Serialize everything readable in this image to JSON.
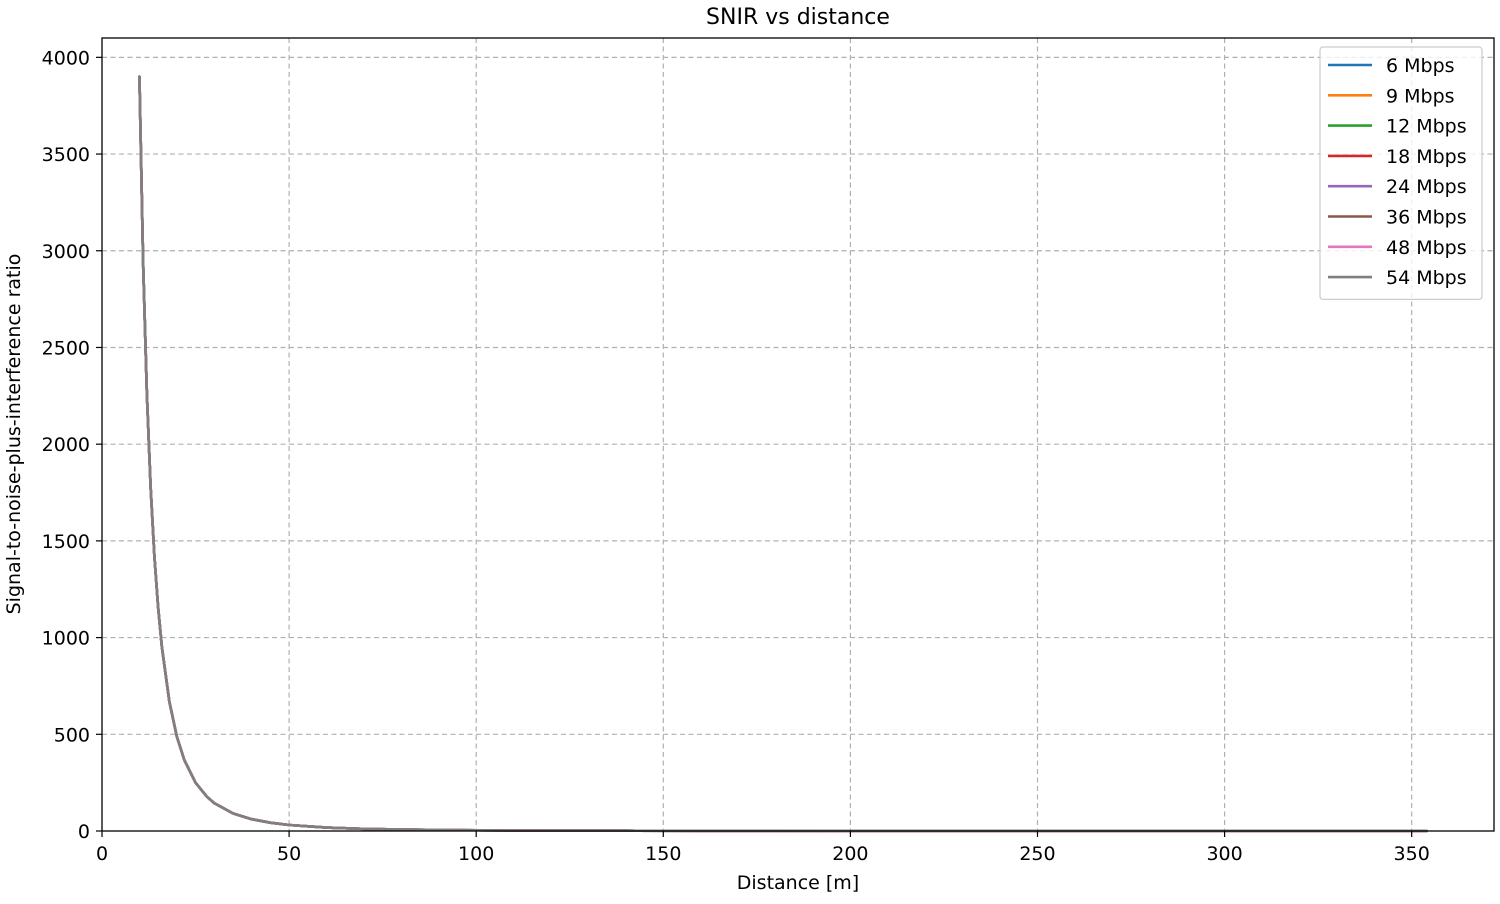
{
  "chart_data": {
    "type": "line",
    "title": "SNIR vs distance",
    "xlabel": "Distance [m]",
    "ylabel": "Signal-to-noise-plus-interference ratio",
    "xlim": [
      0,
      372
    ],
    "ylim": [
      0,
      4100
    ],
    "xticks": [
      0,
      50,
      100,
      150,
      200,
      250,
      300,
      350
    ],
    "yticks": [
      0,
      500,
      1000,
      1500,
      2000,
      2500,
      3000,
      3500,
      4000
    ],
    "grid": true,
    "legend_position": "top-right",
    "x": [
      10,
      11,
      12,
      13,
      14,
      15,
      16,
      18,
      20,
      22,
      25,
      28,
      30,
      35,
      40,
      45,
      50,
      60,
      70,
      80,
      90,
      100,
      120,
      140,
      160,
      180,
      200,
      230,
      260,
      300,
      330,
      354
    ],
    "series": [
      {
        "name": "6 Mbps",
        "color": "#1f77b4",
        "values": [
          3900,
          2930,
          2257,
          1775,
          1421,
          1156,
          952,
          669,
          488,
          367,
          250,
          178,
          144,
          91,
          61,
          43,
          31,
          18,
          11,
          7.6,
          5.4,
          3.9,
          2.3,
          1.4,
          1.0,
          0.7,
          0.5,
          0.3,
          0.2,
          0.14,
          0.11,
          0.08
        ]
      },
      {
        "name": "9 Mbps",
        "color": "#ff7f0e",
        "values": [
          3900,
          2930,
          2257,
          1775,
          1421,
          1156,
          952,
          669,
          488,
          367,
          250,
          178,
          144,
          91,
          61,
          43,
          31,
          18,
          11,
          7.6,
          5.4,
          3.9,
          2.3,
          1.4,
          1.0,
          0.7,
          0.5,
          0.3,
          0.2,
          0.14,
          0.11,
          0.08
        ]
      },
      {
        "name": "12 Mbps",
        "color": "#2ca02c",
        "values": [
          3900,
          2930,
          2257,
          1775,
          1421,
          1156,
          952,
          669,
          488,
          367,
          250,
          178,
          144,
          91,
          61,
          43,
          31,
          18,
          11,
          7.6,
          5.4,
          3.9,
          2.3,
          1.4,
          1.0,
          0.7,
          0.5,
          0.3,
          0.2,
          0.14,
          0.11,
          0.08
        ]
      },
      {
        "name": "18 Mbps",
        "color": "#d62728",
        "values": [
          3900,
          2930,
          2257,
          1775,
          1421,
          1156,
          952,
          669,
          488,
          367,
          250,
          178,
          144,
          91,
          61,
          43,
          31,
          18,
          11,
          7.6,
          5.4,
          3.9,
          2.3,
          1.4,
          1.0,
          0.7,
          0.5,
          0.3,
          0.2,
          0.14,
          0.11,
          0.08
        ]
      },
      {
        "name": "24 Mbps",
        "color": "#9467bd",
        "values": [
          3900,
          2930,
          2257,
          1775,
          1421,
          1156,
          952,
          669,
          488,
          367,
          250,
          178,
          144,
          91,
          61,
          43,
          31,
          18,
          11,
          7.6,
          5.4,
          3.9,
          2.3,
          1.4,
          1.0,
          0.7,
          0.5,
          0.3,
          0.2,
          0.14,
          0.11,
          0.08
        ]
      },
      {
        "name": "36 Mbps",
        "color": "#8c564b",
        "values": [
          3900,
          2930,
          2257,
          1775,
          1421,
          1156,
          952,
          669,
          488,
          367,
          250,
          178,
          144,
          91,
          61,
          43,
          31,
          18,
          11,
          7.6,
          5.4,
          3.9,
          2.3,
          1.4,
          1.0,
          0.7,
          0.5,
          0.3,
          0.2,
          0.14,
          0.11,
          0.08
        ]
      },
      {
        "name": "48 Mbps",
        "color": "#e377c2",
        "values": [
          3900,
          2930,
          2257,
          1775,
          1421,
          1156,
          952,
          669,
          488,
          367,
          250,
          178,
          144,
          91,
          61,
          43,
          31,
          18,
          11,
          7.6,
          5.4,
          3.9,
          2.3,
          1.4,
          1.0,
          0.7,
          0.5,
          0.3,
          0.2,
          0.14,
          0.11,
          0.08
        ]
      },
      {
        "name": "54 Mbps",
        "color": "#7f7f7f",
        "values": [
          3900,
          2930,
          2257,
          1775,
          1421,
          1156,
          952,
          669,
          488,
          367,
          250,
          178,
          144,
          91,
          61,
          43,
          31,
          18,
          11,
          7.6,
          5.4,
          3.9,
          2.3,
          1.4,
          1.0,
          0.7,
          0.5,
          0.3,
          0.2,
          0.14,
          0.11,
          0.08
        ]
      }
    ]
  }
}
